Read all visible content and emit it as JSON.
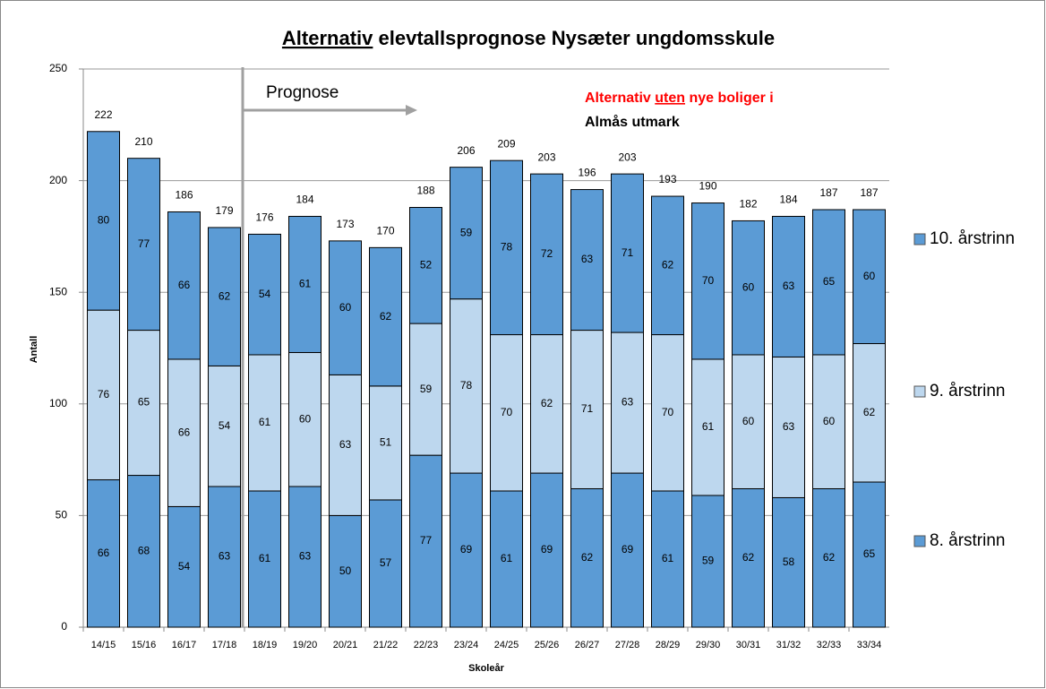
{
  "chart_data": {
    "type": "stacked_bar",
    "title": {
      "underlined": "Alternativ",
      "rest": "elevtallsprognose Nysæter ungdomsskule"
    },
    "annotation": {
      "line1_start": "Alternativ",
      "line1_underlined": "uten",
      "line1_end": "nye boliger i",
      "line2": "Almås utmark",
      "color": "#ff0000"
    },
    "forecast_label": "Prognose",
    "forecast_start_index": 4,
    "x_label": "Skoleår",
    "y_label": "Antall",
    "categories": [
      "14/15",
      "15/16",
      "16/17",
      "17/18",
      "18/19",
      "19/20",
      "20/21",
      "21/22",
      "22/23",
      "23/24",
      "24/25",
      "25/26",
      "26/27",
      "27/28",
      "28/29",
      "29/30",
      "30/31",
      "31/32",
      "32/33",
      "33/34"
    ],
    "series": [
      {
        "name": "8. årstrinn",
        "color": "#5b9bd5",
        "values": [
          66,
          68,
          54,
          63,
          61,
          63,
          50,
          57,
          77,
          69,
          61,
          69,
          62,
          69,
          61,
          59,
          62,
          58,
          62,
          65
        ]
      },
      {
        "name": "9. årstrinn",
        "color": "#bdd7ee",
        "values": [
          76,
          65,
          66,
          54,
          61,
          60,
          63,
          51,
          59,
          78,
          70,
          62,
          71,
          63,
          70,
          61,
          60,
          63,
          60,
          62
        ]
      },
      {
        "name": "10. årstrinn",
        "color": "#5b9bd5",
        "values": [
          80,
          77,
          66,
          62,
          54,
          61,
          60,
          62,
          52,
          59,
          78,
          72,
          63,
          71,
          62,
          70,
          60,
          63,
          65,
          60
        ]
      }
    ],
    "totals": [
      222,
      210,
      186,
      179,
      176,
      184,
      173,
      170,
      188,
      206,
      209,
      203,
      196,
      203,
      193,
      190,
      182,
      184,
      187,
      187
    ],
    "ylim": [
      0,
      250
    ],
    "yticks": [
      0,
      50,
      100,
      150,
      200,
      250
    ],
    "grid": true
  }
}
